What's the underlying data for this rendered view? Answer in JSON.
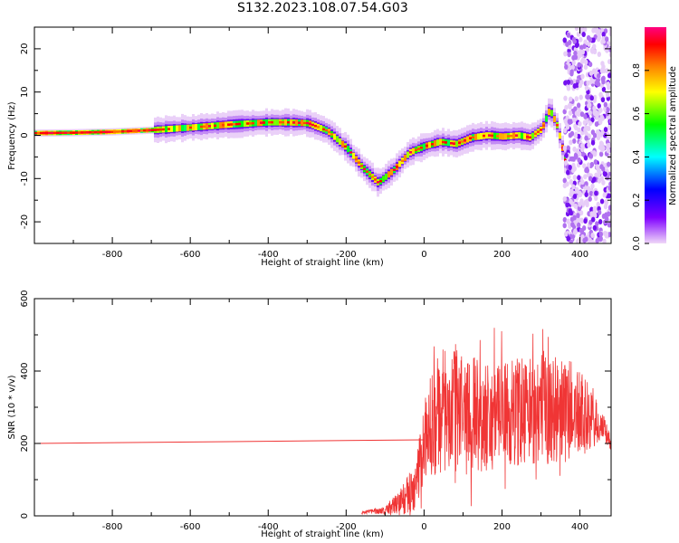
{
  "title": "S132.2023.108.07.54.G03",
  "colors": {
    "snr_line": "#f03535",
    "axis": "#000000"
  },
  "chart_data": [
    {
      "type": "heatmap",
      "xlabel": "Height of straight line (km)",
      "ylabel": "Frequency (Hz)",
      "xlim": [
        -1000,
        480
      ],
      "ylim": [
        -25,
        25
      ],
      "xticks": [
        "-800",
        "-600",
        "-400",
        "-200",
        "0",
        "200",
        "400"
      ],
      "yticks": [
        "20",
        "10",
        "0",
        "-10",
        "-20"
      ],
      "colorbar": {
        "label": "Normalized spectral amplitude",
        "range": [
          0,
          1
        ],
        "ticks": [
          "0.0",
          "0.2",
          "0.4",
          "0.6",
          "0.8"
        ],
        "colormap": [
          "#f0d8f8",
          "#8000ff",
          "#0000ff",
          "#00ffff",
          "#00ff00",
          "#ffff00",
          "#ff8000",
          "#ff0000",
          "#ff0080"
        ]
      },
      "ridge": {
        "x": [
          -1000,
          -900,
          -800,
          -700,
          -600,
          -500,
          -400,
          -350,
          -300,
          -250,
          -200,
          -160,
          -120,
          -80,
          -40,
          0,
          40,
          80,
          120,
          160,
          200,
          240,
          270,
          300,
          320,
          340,
          360
        ],
        "y": [
          0.5,
          0.6,
          0.8,
          1.2,
          1.8,
          2.5,
          3.0,
          3.0,
          2.8,
          1.0,
          -3.0,
          -7.5,
          -11.0,
          -8.0,
          -4.0,
          -2.5,
          -1.5,
          -2.0,
          -0.5,
          0.0,
          -0.3,
          0.0,
          -0.5,
          1.5,
          6.0,
          2.0,
          -6.0
        ]
      },
      "noise_region_x": [
        360,
        480
      ]
    },
    {
      "type": "line",
      "xlabel": "Height of straight line (km)",
      "ylabel": "SNR (10 * v/v)",
      "xlim": [
        -1000,
        480
      ],
      "ylim": [
        0,
        600
      ],
      "xticks": [
        "-800",
        "-600",
        "-400",
        "-200",
        "0",
        "200",
        "400"
      ],
      "yticks": [
        "600",
        "400",
        "200",
        "0"
      ],
      "baseline": {
        "x": [
          -1000,
          0
        ],
        "y": [
          200,
          210
        ]
      },
      "envelope": {
        "x": [
          -160,
          -100,
          -60,
          -20,
          0,
          20,
          60,
          100,
          140,
          200,
          260,
          320,
          380,
          420,
          460,
          480
        ],
        "mean": [
          10,
          15,
          40,
          80,
          200,
          260,
          300,
          300,
          280,
          280,
          290,
          300,
          290,
          270,
          240,
          200
        ],
        "amp": [
          5,
          10,
          40,
          70,
          120,
          150,
          180,
          170,
          160,
          150,
          150,
          160,
          140,
          100,
          40,
          20
        ]
      }
    }
  ]
}
